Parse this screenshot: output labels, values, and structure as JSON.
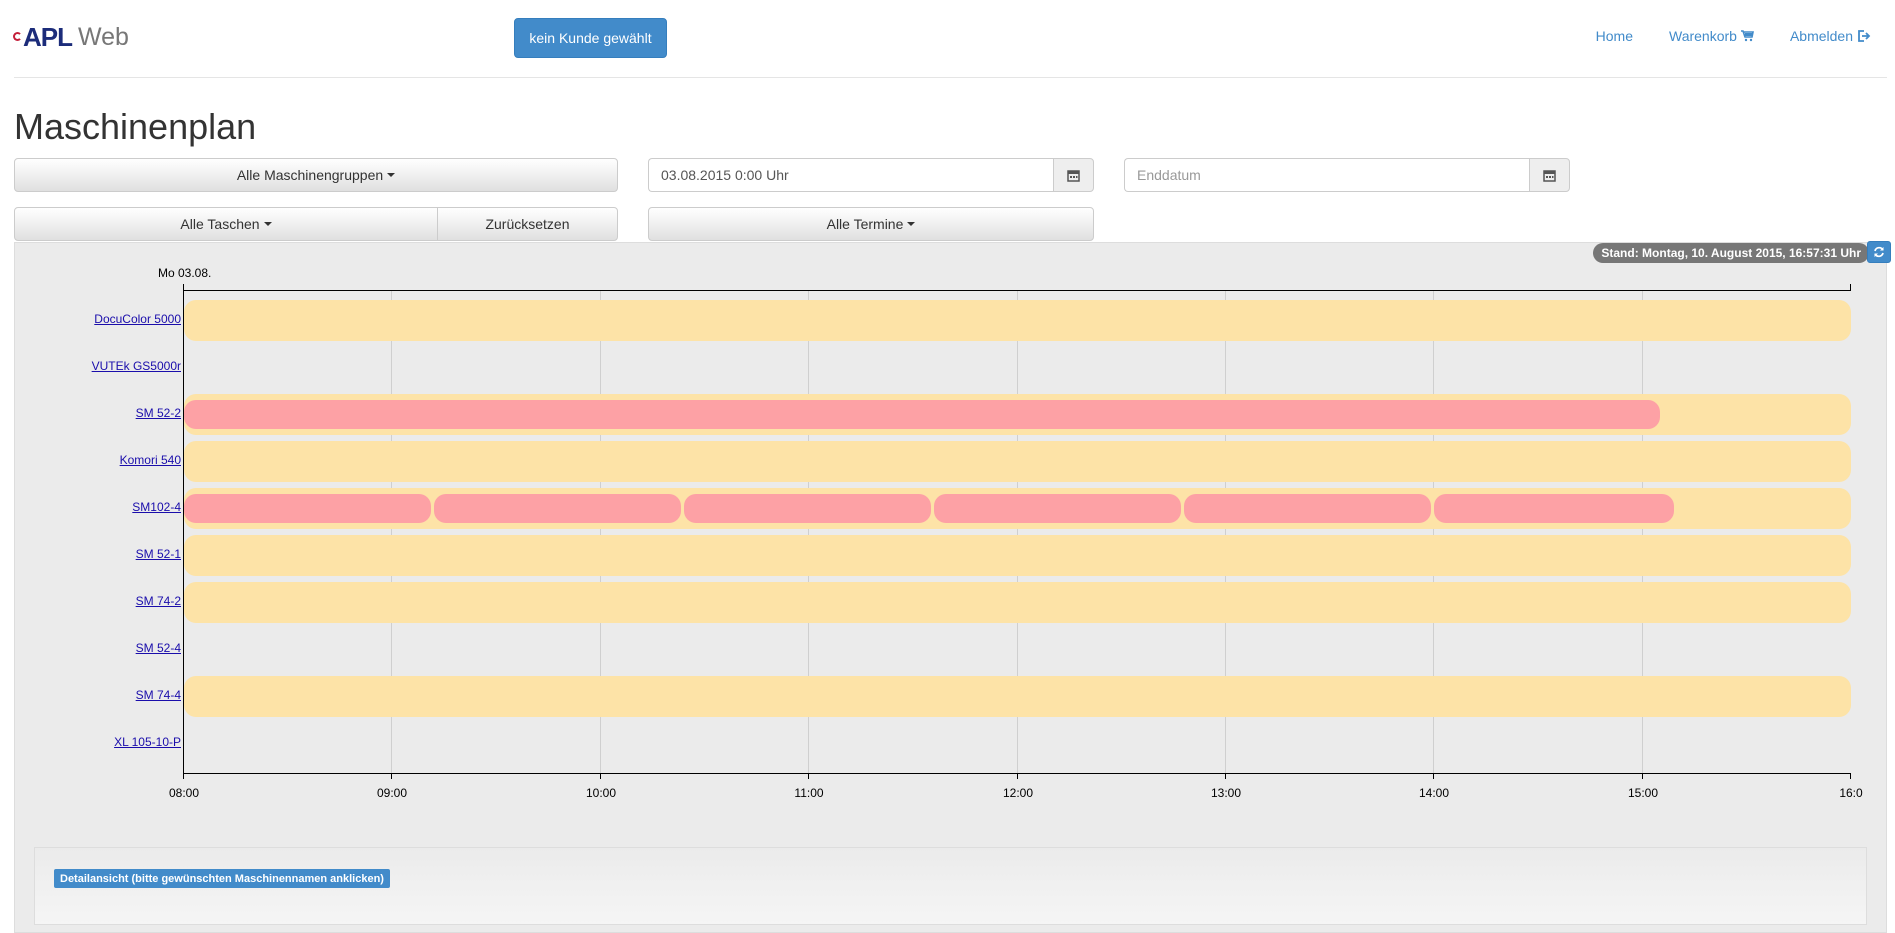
{
  "navbar": {
    "brand_logo": "APL",
    "brand_sub": "Web",
    "customer_button": "kein Kunde gewählt",
    "links": [
      {
        "label": "Home",
        "icon": null
      },
      {
        "label": "Warenkorb",
        "icon": "cart-icon"
      },
      {
        "label": "Abmelden",
        "icon": "logout-icon"
      }
    ]
  },
  "page": {
    "title": "Maschinenplan"
  },
  "filters": {
    "machine_groups": "Alle Maschinengruppen",
    "start_date_value": "03.08.2015 0:00 Uhr",
    "end_date_placeholder": "Enddatum",
    "bags": "Alle Taschen",
    "reset": "Zurücksetzen",
    "appointments": "Alle Termine"
  },
  "timeline": {
    "status": "Stand: Montag, 10. August 2015, 16:57:31 Uhr",
    "date_label": "Mo 03.08.",
    "ticks": [
      "08:00",
      "09:00",
      "10:00",
      "11:00",
      "12:00",
      "13:00",
      "14:00",
      "15:00",
      "16:0"
    ],
    "colors": {
      "availability": "#fde3a7",
      "job": "#fda1a5",
      "background": "#ebebeb"
    }
  },
  "chart_data": {
    "type": "gantt",
    "x_range": [
      "08:00",
      "16:00"
    ],
    "rows": [
      {
        "machine": "DocuColor 5000",
        "availability": [
          [
            "08:00",
            "16:00"
          ]
        ],
        "jobs": []
      },
      {
        "machine": "VUTEk GS5000r",
        "availability": [],
        "jobs": []
      },
      {
        "machine": "SM 52-2",
        "availability": [
          [
            "08:00",
            "16:00"
          ]
        ],
        "jobs": [
          [
            "08:00",
            "15:05"
          ]
        ]
      },
      {
        "machine": "Komori 540",
        "availability": [
          [
            "08:00",
            "16:00"
          ]
        ],
        "jobs": []
      },
      {
        "machine": "SM102-4",
        "availability": [
          [
            "08:00",
            "16:00"
          ]
        ],
        "jobs": [
          [
            "08:00",
            "09:11"
          ],
          [
            "09:12",
            "10:23"
          ],
          [
            "10:24",
            "11:35"
          ],
          [
            "11:36",
            "12:47"
          ],
          [
            "12:48",
            "13:59"
          ],
          [
            "14:00",
            "15:09"
          ]
        ]
      },
      {
        "machine": "SM 52-1",
        "availability": [
          [
            "08:00",
            "16:00"
          ]
        ],
        "jobs": []
      },
      {
        "machine": "SM 74-2",
        "availability": [
          [
            "08:00",
            "16:00"
          ]
        ],
        "jobs": []
      },
      {
        "machine": "SM 52-4",
        "availability": [],
        "jobs": []
      },
      {
        "machine": "SM 74-4",
        "availability": [
          [
            "08:00",
            "16:00"
          ]
        ],
        "jobs": []
      },
      {
        "machine": "XL 105-10-P",
        "availability": [],
        "jobs": []
      }
    ]
  },
  "detail": {
    "label": "Detailansicht (bitte gewünschten Maschinennamen anklicken)"
  }
}
